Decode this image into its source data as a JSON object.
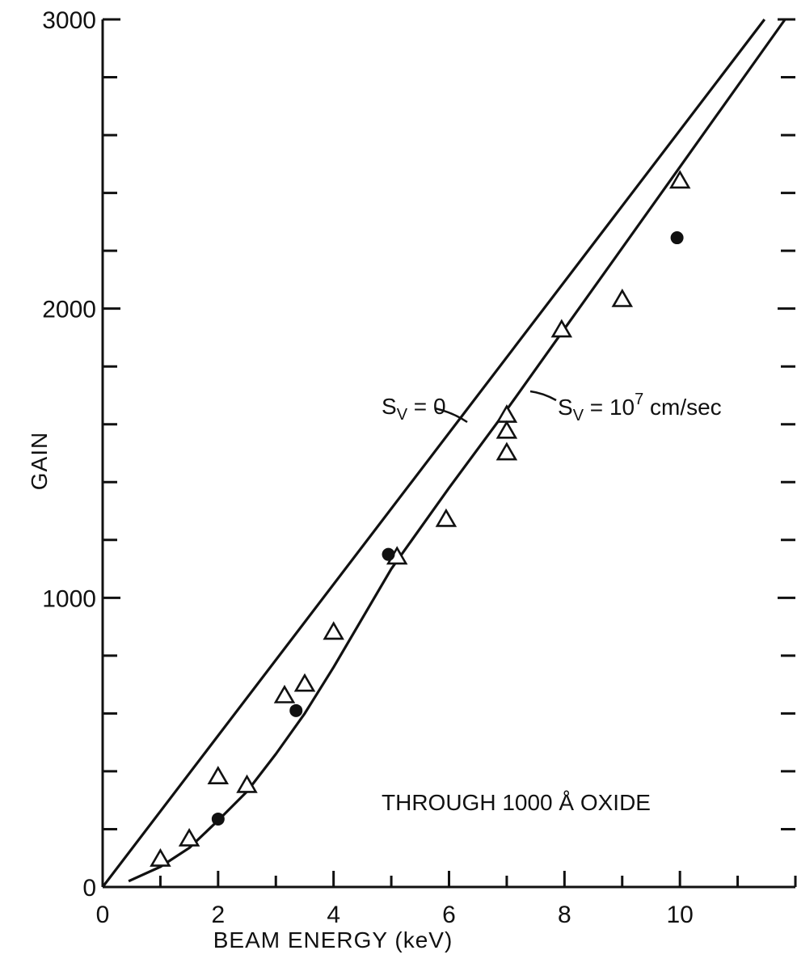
{
  "chart_data": {
    "type": "scatter",
    "xlabel": "BEAM ENERGY (keV)",
    "ylabel": "GAIN",
    "xlim": [
      0,
      12
    ],
    "ylim": [
      0,
      3000
    ],
    "x_ticks": [
      0,
      2,
      4,
      6,
      8,
      10
    ],
    "y_ticks": [
      0,
      1000,
      2000,
      3000
    ],
    "grid": false,
    "annotation": "THROUGH 1000 Å OXIDE",
    "curves": [
      {
        "label_main": "S",
        "label_sub": "V",
        "label_rest": " = 0",
        "x": [
          0,
          12
        ],
        "y": [
          0,
          3140
        ]
      },
      {
        "label_main": "S",
        "label_sub": "V",
        "label_rest": " = 10",
        "label_sup": "7",
        "label_unit": " cm/sec",
        "x": [
          0.45,
          1.0,
          1.5,
          2.0,
          2.5,
          3.0,
          3.5,
          4.0,
          5.0,
          6.0,
          7.0,
          8.0,
          9.0,
          10.0,
          12.0
        ],
        "y": [
          20,
          70,
          135,
          230,
          330,
          460,
          600,
          760,
          1100,
          1380,
          1650,
          1930,
          2210,
          2490,
          3050
        ]
      }
    ],
    "series": [
      {
        "marker": "triangle",
        "x": [
          1.0,
          1.5,
          2.0,
          2.5,
          3.15,
          3.5,
          4.0,
          5.1,
          5.95,
          7.0,
          7.0,
          7.0,
          7.95,
          9.0,
          10.0
        ],
        "y": [
          95,
          165,
          380,
          350,
          660,
          700,
          880,
          1140,
          1270,
          1630,
          1575,
          1500,
          1925,
          2030,
          2440
        ]
      },
      {
        "marker": "filled-circle",
        "x": [
          2.0,
          3.35,
          4.95,
          9.95
        ],
        "y": [
          235,
          610,
          1150,
          2245
        ]
      }
    ]
  }
}
